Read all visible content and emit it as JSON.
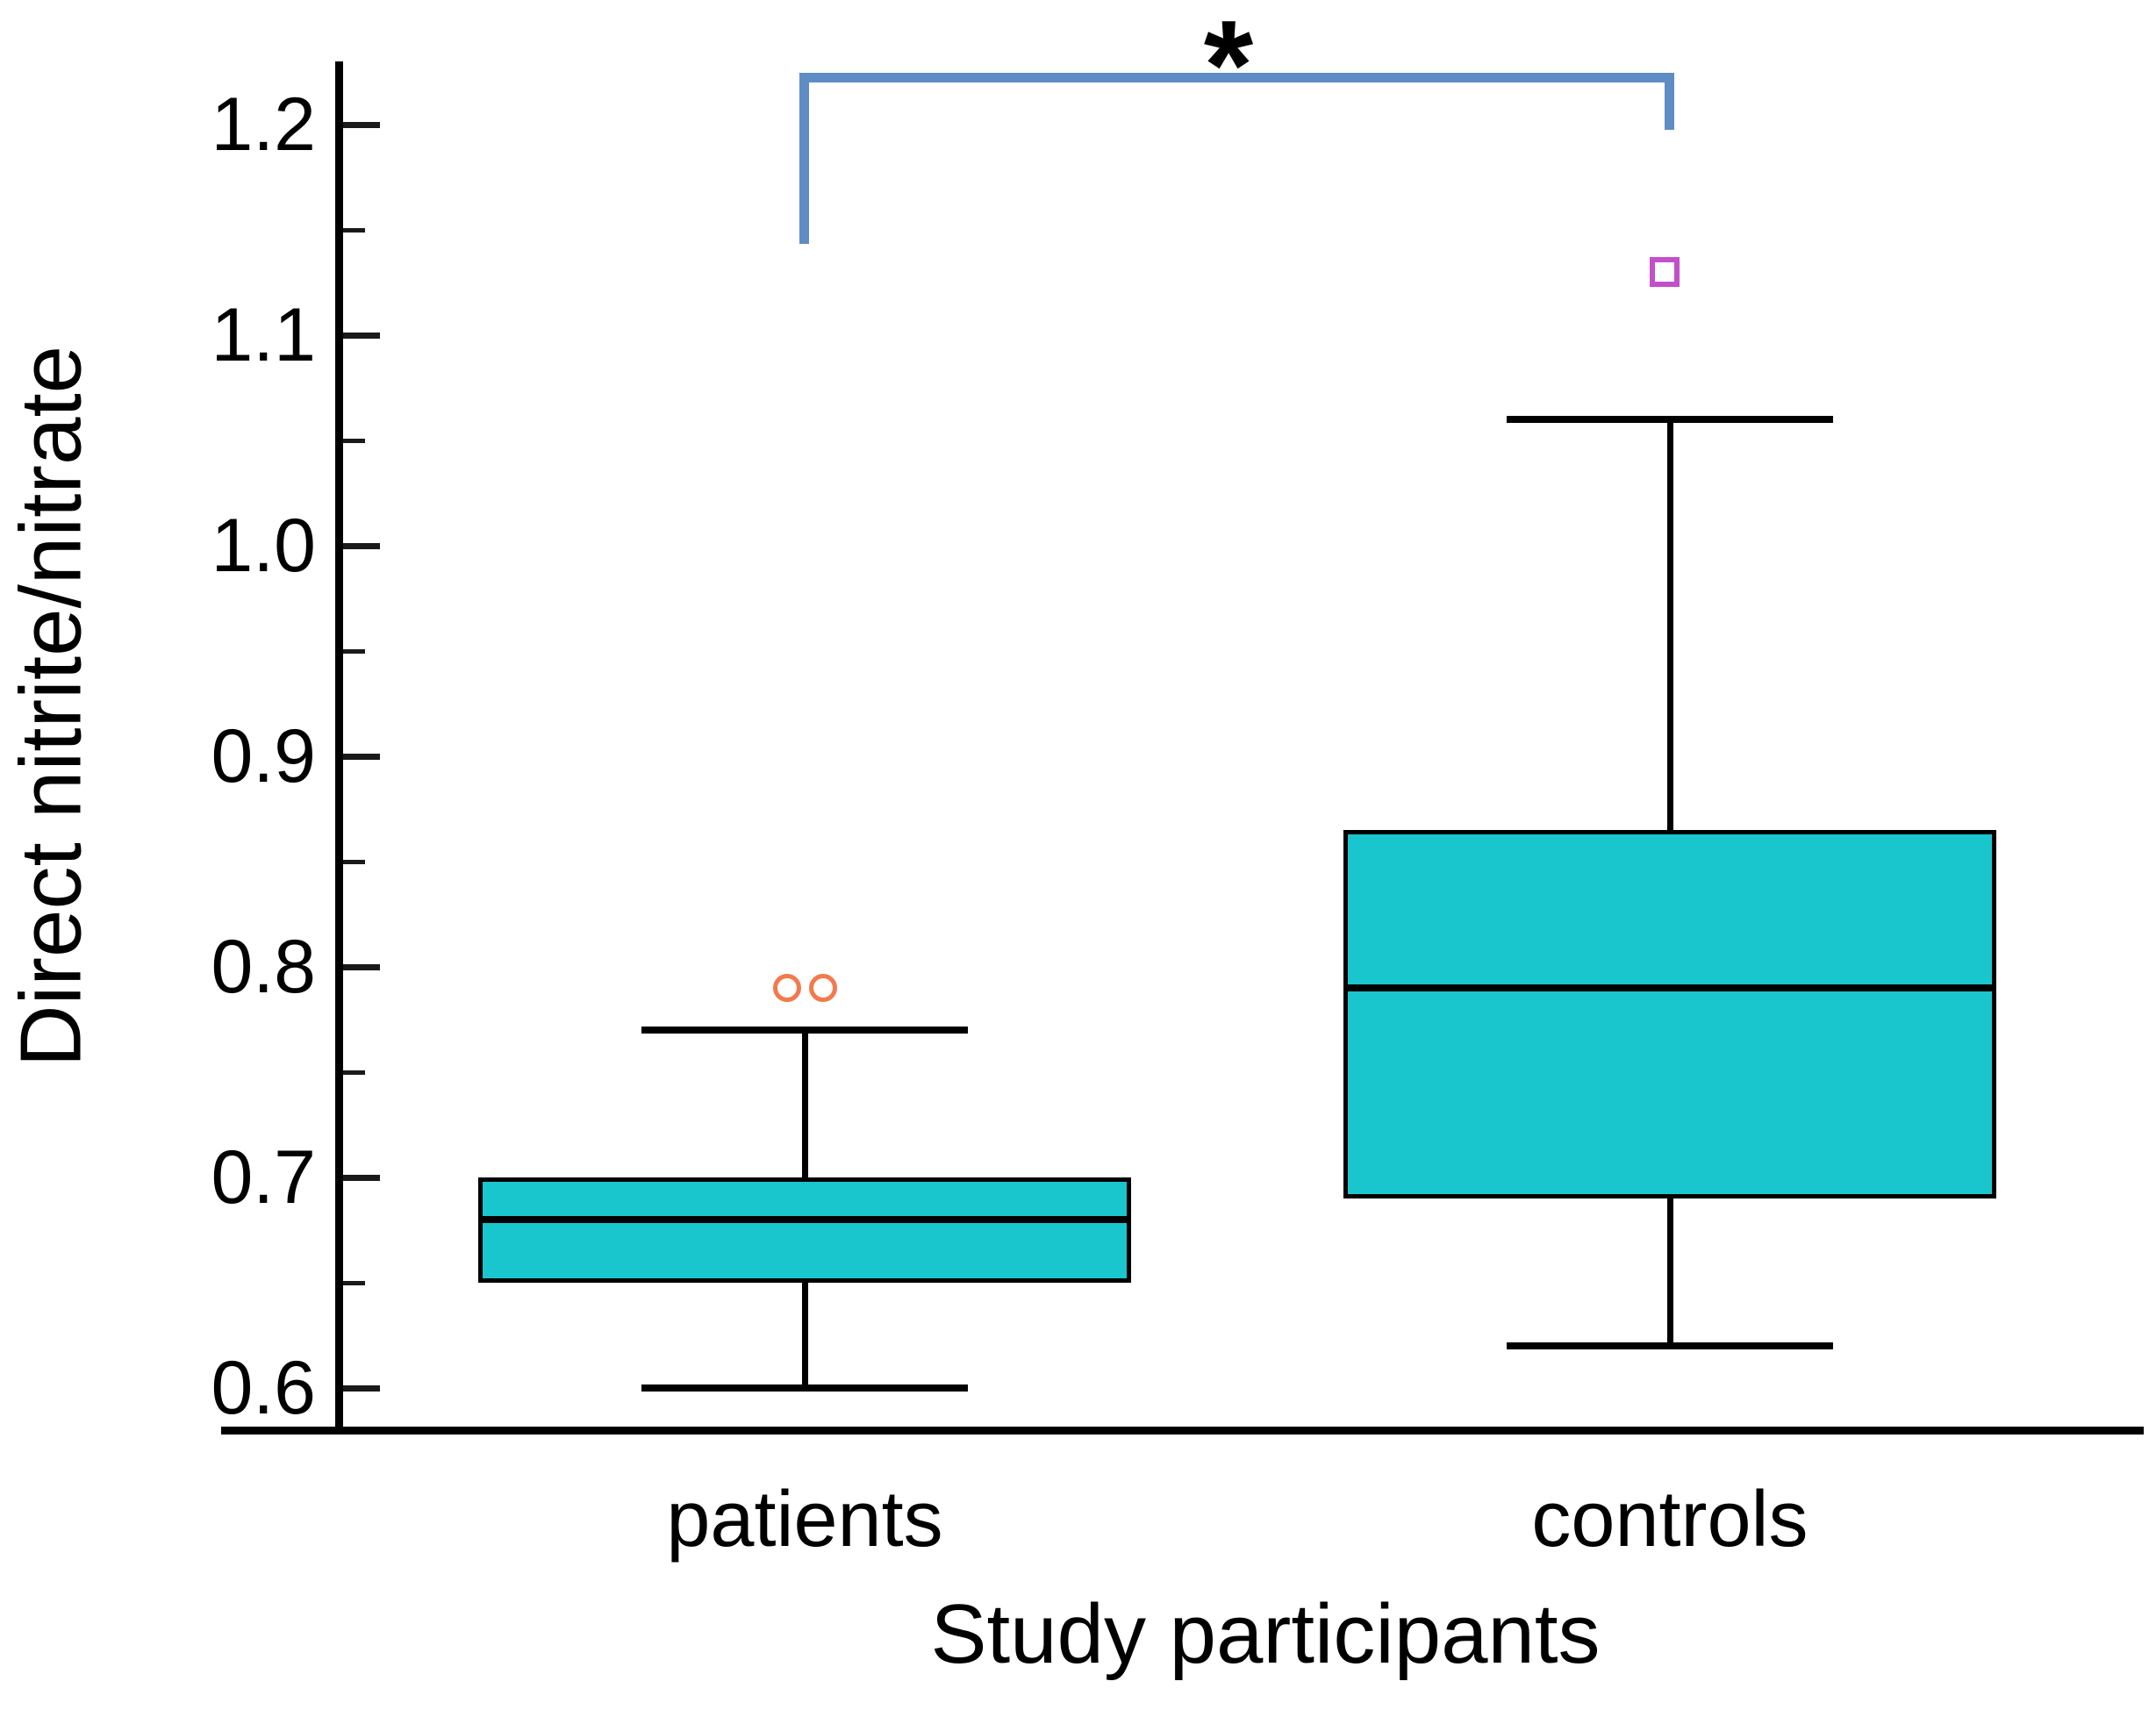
{
  "chart_data": {
    "type": "box",
    "title": "",
    "xlabel": "Study participants",
    "ylabel": "Direct nitrite/nitrate",
    "categories": [
      "patients",
      "controls"
    ],
    "y_axis": {
      "range_shown": [
        0.58,
        1.23
      ],
      "major_ticks": [
        {
          "value": 1.2,
          "label": "1.2"
        },
        {
          "value": 1.1,
          "label": "1.1"
        },
        {
          "value": 1.0,
          "label": "1.0"
        },
        {
          "value": 0.9,
          "label": "0.9"
        },
        {
          "value": 0.8,
          "label": "0.8"
        },
        {
          "value": 0.7,
          "label": "0.7"
        },
        {
          "value": 0.6,
          "label": "0.6"
        }
      ],
      "minor_ticks": [
        1.15,
        1.05,
        0.95,
        0.85,
        0.75,
        0.65
      ]
    },
    "series": [
      {
        "name": "patients",
        "whisker_low": 0.6,
        "q1": 0.65,
        "median": 0.68,
        "q3": 0.7,
        "whisker_high": 0.77,
        "outliers": [
          {
            "value": 0.79,
            "shape": "circle"
          },
          {
            "value": 0.79,
            "shape": "circle"
          }
        ]
      },
      {
        "name": "controls",
        "whisker_low": 0.62,
        "q1": 0.69,
        "median": 0.79,
        "q3": 0.865,
        "whisker_high": 1.06,
        "outliers": [
          {
            "value": 1.13,
            "shape": "square"
          }
        ]
      }
    ],
    "significance": {
      "label": "*",
      "between": [
        "patients",
        "controls"
      ]
    },
    "grid": false,
    "legend": null,
    "colors": {
      "box_fill": "#1AC6CE",
      "box_border": "#000000",
      "whisker": "#000000",
      "median": "#000000",
      "axis": "#000000",
      "tick": "#1a1a1a",
      "text": "#000000",
      "outlier_circle": "#F4794B",
      "outlier_square": "#C34FC9",
      "bracket": "#5E8DC6"
    }
  }
}
